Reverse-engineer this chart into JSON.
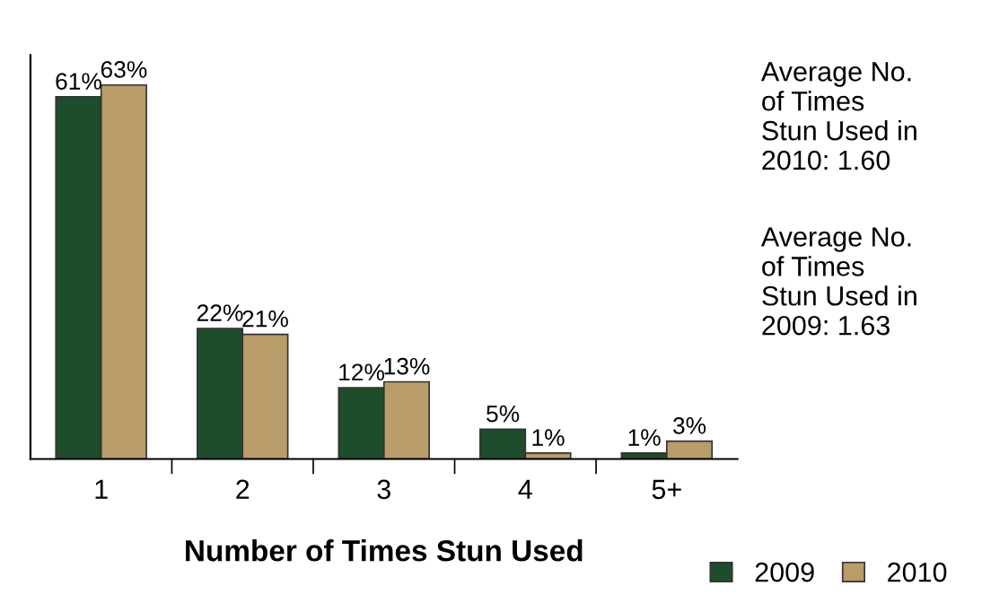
{
  "chart_data": {
    "type": "bar",
    "xlabel": "Number of Times Stun Used",
    "categories": [
      "1",
      "2",
      "3",
      "4",
      "5+"
    ],
    "series": [
      {
        "name": "2009",
        "color": "#1e4d2b",
        "values": [
          61,
          22,
          12,
          5,
          1
        ],
        "value_labels": [
          "61%",
          "22%",
          "12%",
          "5%",
          "1%"
        ]
      },
      {
        "name": "2010",
        "color": "#b89c6a",
        "values": [
          63,
          21,
          13,
          1,
          3
        ],
        "value_labels": [
          "63%",
          "21%",
          "13%",
          "1%",
          "3%"
        ]
      }
    ],
    "annotations": [
      "Average No.\nof Times\nStun Used in\n2010: 1.60",
      "Average No.\nof Times\nStun Used in\n2009: 1.63"
    ],
    "legend": "bottom right",
    "grid": false
  }
}
